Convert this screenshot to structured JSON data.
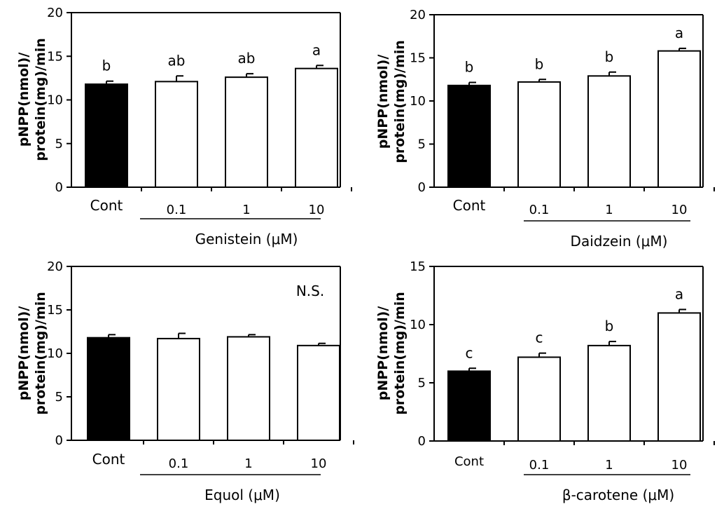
{
  "chart_data": [
    {
      "type": "bar",
      "categories": [
        "Cont",
        "0.1",
        "1",
        "10"
      ],
      "values": [
        11.8,
        12.1,
        12.6,
        13.6
      ],
      "errors": [
        0.35,
        0.65,
        0.4,
        0.35
      ],
      "significance": [
        "b",
        "ab",
        "ab",
        "a"
      ],
      "bar_colors": [
        "#000000",
        "#ffffff",
        "#ffffff",
        "#ffffff"
      ],
      "ylabel_line1": "pNPP(nmol)/",
      "ylabel_line2": "protein(mg)/min",
      "group_label": "Genistein (μM)",
      "ns_label": "",
      "ylim": [
        0,
        20
      ],
      "yticks": [
        0,
        5,
        10,
        15,
        20
      ]
    },
    {
      "type": "bar",
      "categories": [
        "Cont",
        "0.1",
        "1",
        "10"
      ],
      "values": [
        11.8,
        12.2,
        12.9,
        15.8
      ],
      "errors": [
        0.35,
        0.3,
        0.45,
        0.3
      ],
      "significance": [
        "b",
        "b",
        "b",
        "a"
      ],
      "bar_colors": [
        "#000000",
        "#ffffff",
        "#ffffff",
        "#ffffff"
      ],
      "ylabel_line1": "pNPP(nmol)/",
      "ylabel_line2": "protein(mg)/min",
      "group_label": "Daidzein (μM)",
      "ns_label": "",
      "ylim": [
        0,
        20
      ],
      "yticks": [
        0,
        5,
        10,
        15,
        20
      ]
    },
    {
      "type": "bar",
      "categories": [
        "Cont",
        "0.1",
        "1",
        "10"
      ],
      "values": [
        11.8,
        11.7,
        11.9,
        10.9
      ],
      "errors": [
        0.35,
        0.6,
        0.25,
        0.25
      ],
      "significance": [
        "",
        "",
        "",
        ""
      ],
      "bar_colors": [
        "#000000",
        "#ffffff",
        "#ffffff",
        "#ffffff"
      ],
      "ylabel_line1": "pNPP(nmol)/",
      "ylabel_line2": "protein(mg)/min",
      "group_label": "Equol (μM)",
      "ns_label": "N.S.",
      "ylim": [
        0,
        20
      ],
      "yticks": [
        0,
        5,
        10,
        15,
        20
      ]
    },
    {
      "type": "bar",
      "categories": [
        "Cont",
        "0.1",
        "1",
        "10"
      ],
      "values": [
        6.0,
        7.2,
        8.2,
        11.0
      ],
      "errors": [
        0.25,
        0.35,
        0.35,
        0.3
      ],
      "significance": [
        "c",
        "c",
        "b",
        "a"
      ],
      "bar_colors": [
        "#000000",
        "#ffffff",
        "#ffffff",
        "#ffffff"
      ],
      "ylabel_line1": "pNPP(nmol)/",
      "ylabel_line2": "protein(mg)/min",
      "group_label": "β-carotene (μM)",
      "ns_label": "",
      "ylim": [
        0,
        15
      ],
      "yticks": [
        0,
        5,
        10,
        15
      ]
    }
  ]
}
